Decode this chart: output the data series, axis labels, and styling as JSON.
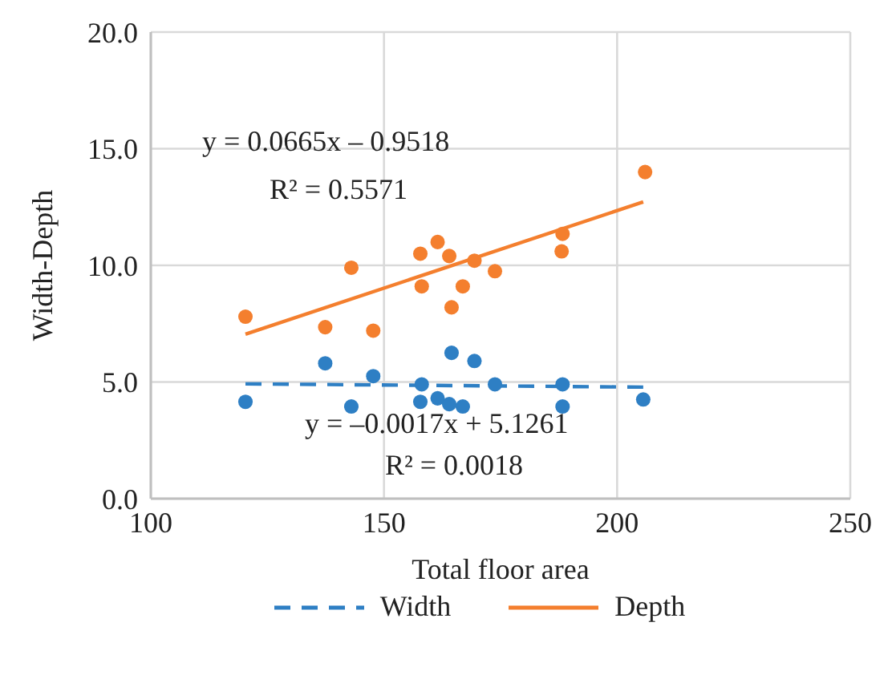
{
  "chart_data": {
    "type": "scatter",
    "xlabel": "Total floor area",
    "ylabel": "Width-Depth",
    "xlim": [
      100,
      250
    ],
    "xticks": [
      100,
      150,
      200,
      250
    ],
    "ylim": [
      0,
      20
    ],
    "yticks": [
      {
        "value": 0,
        "label": "0.0"
      },
      {
        "value": 5,
        "label": "5.0"
      },
      {
        "value": 10,
        "label": "10.0"
      },
      {
        "value": 15,
        "label": "15.0"
      },
      {
        "value": 20,
        "label": "20.0"
      }
    ],
    "grid": true,
    "legend": "bottom",
    "marker": "circle",
    "series": [
      {
        "color": "#2e7fc4",
        "x": [
          120.3,
          137.4,
          143.0,
          147.7,
          157.8,
          158.1,
          161.5,
          164.0,
          164.5,
          166.9,
          169.4,
          173.8,
          188.3,
          188.3,
          205.6
        ],
        "values": [
          4.15,
          5.8,
          3.95,
          5.25,
          4.15,
          4.9,
          4.3,
          4.05,
          6.25,
          3.95,
          5.9,
          4.9,
          4.9,
          3.95,
          4.25
        ]
      },
      {
        "color": "#f47f2e",
        "x": [
          120.3,
          137.4,
          143.0,
          147.7,
          157.8,
          158.1,
          161.5,
          164.0,
          164.5,
          166.9,
          169.4,
          173.8,
          188.1,
          188.3,
          206.0
        ],
        "values": [
          7.8,
          7.35,
          9.9,
          7.2,
          10.5,
          9.1,
          11.0,
          10.4,
          8.2,
          9.1,
          10.2,
          9.75,
          10.6,
          11.35,
          14.0
        ]
      },
      {
        "type": "line",
        "name": "Width",
        "color": "#2e7fc4",
        "line_style": "dashed",
        "marker": "none",
        "x": [
          120.3,
          205.6
        ],
        "values": [
          4.92,
          4.78
        ]
      },
      {
        "type": "line",
        "name": "Depth",
        "color": "#f47f2e",
        "line_style": "solid",
        "marker": "none",
        "x": [
          120.3,
          205.6
        ],
        "values": [
          7.05,
          12.72
        ]
      }
    ],
    "annotations": [
      "y = 0.0665x – 0.9518",
      "R² = 0.5571",
      "y = –0.0017x + 5.1261",
      "R² = 0.0018"
    ]
  }
}
